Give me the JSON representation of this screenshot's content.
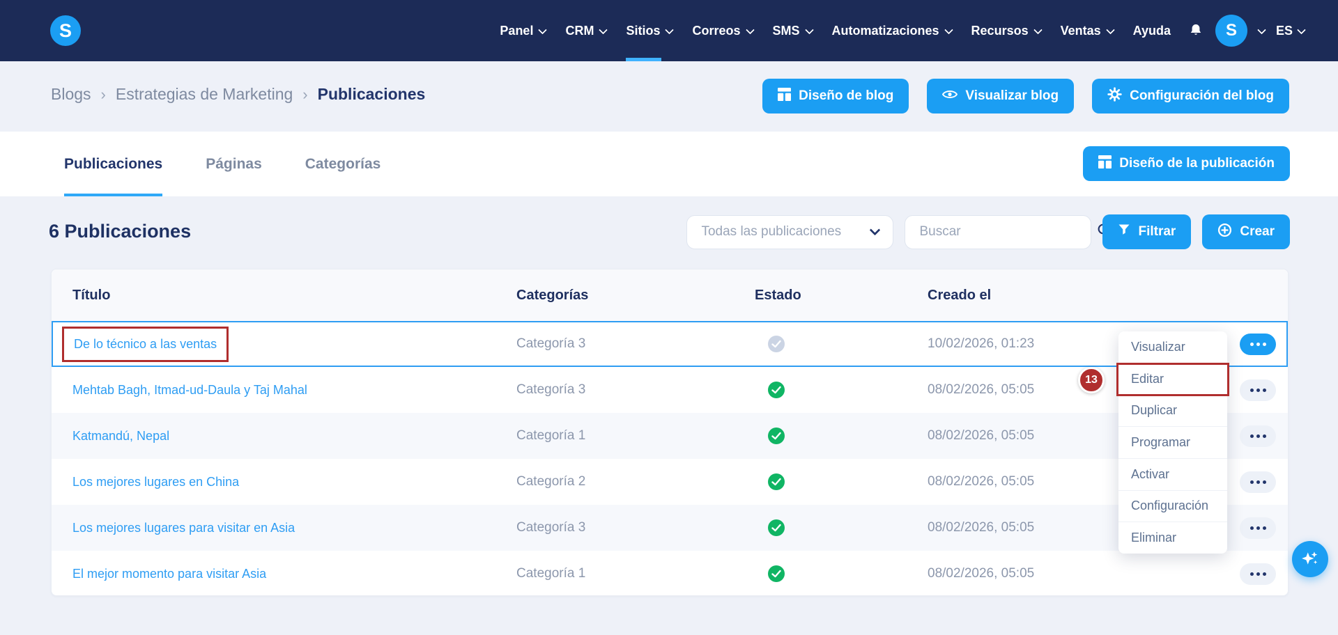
{
  "navbar": {
    "logo_letter": "S",
    "items": [
      {
        "label": "Panel",
        "chevron": true,
        "active": false
      },
      {
        "label": "CRM",
        "chevron": true,
        "active": false
      },
      {
        "label": "Sitios",
        "chevron": true,
        "active": true
      },
      {
        "label": "Correos",
        "chevron": true,
        "active": false
      },
      {
        "label": "SMS",
        "chevron": true,
        "active": false
      },
      {
        "label": "Automatizaciones",
        "chevron": true,
        "active": false
      },
      {
        "label": "Recursos",
        "chevron": true,
        "active": false
      },
      {
        "label": "Ventas",
        "chevron": true,
        "active": false
      },
      {
        "label": "Ayuda",
        "chevron": false,
        "active": false
      }
    ],
    "avatar_letter": "S",
    "language": "ES"
  },
  "breadcrumb": {
    "separator": "›",
    "items": [
      "Blogs",
      "Estrategias de Marketing",
      "Publicaciones"
    ]
  },
  "header_actions": {
    "design_blog": "Diseño de blog",
    "preview_blog": "Visualizar blog",
    "blog_settings": "Configuración del blog"
  },
  "tabs": [
    {
      "label": "Publicaciones",
      "active": true
    },
    {
      "label": "Páginas",
      "active": false
    },
    {
      "label": "Categorías",
      "active": false
    }
  ],
  "post_design_button": "Diseño de la publicación",
  "toolbar": {
    "title": "6 Publicaciones",
    "filter_dropdown_value": "Todas las publicaciones",
    "search_placeholder": "Buscar",
    "filter_button": "Filtrar",
    "create_button": "Crear"
  },
  "table": {
    "columns": [
      "Título",
      "Categorías",
      "Estado",
      "Creado el"
    ],
    "rows": [
      {
        "title": "De lo técnico a las ventas",
        "category": "Categoría 3",
        "status": "draft",
        "created": "10/02/2026, 01:23",
        "selected": true,
        "annotated": true
      },
      {
        "title": "Mehtab Bagh, Itmad-ud-Daula y Taj Mahal",
        "category": "Categoría 3",
        "status": "published",
        "created": "08/02/2026, 05:05",
        "selected": false,
        "annotated": false
      },
      {
        "title": "Katmandú, Nepal",
        "category": "Categoría 1",
        "status": "published",
        "created": "08/02/2026, 05:05",
        "selected": false,
        "annotated": false
      },
      {
        "title": "Los mejores lugares en China",
        "category": "Categoría 2",
        "status": "published",
        "created": "08/02/2026, 05:05",
        "selected": false,
        "annotated": false
      },
      {
        "title": "Los mejores lugares para visitar en Asia",
        "category": "Categoría 3",
        "status": "published",
        "created": "08/02/2026, 05:05",
        "selected": false,
        "annotated": false
      },
      {
        "title": "El mejor momento para visitar Asia",
        "category": "Categoría 1",
        "status": "published",
        "created": "08/02/2026, 05:05",
        "selected": false,
        "annotated": false
      }
    ]
  },
  "context_menu": {
    "items": [
      "Visualizar",
      "Editar",
      "Duplicar",
      "Programar",
      "Activar",
      "Configuración",
      "Eliminar"
    ],
    "annotated_item": "Editar"
  },
  "annotation": {
    "step_number": "13"
  },
  "colors": {
    "accent_blue": "#1b9ef3",
    "navbar_navy": "#1c2b57",
    "text_navy": "#22356b",
    "muted_text": "#8c97ac",
    "link_blue": "#2e9df3",
    "status_published_green": "#10b564",
    "status_draft_gray": "#cbd4e4",
    "annotation_red": "#b02e2e",
    "page_background": "#eef1f8"
  }
}
